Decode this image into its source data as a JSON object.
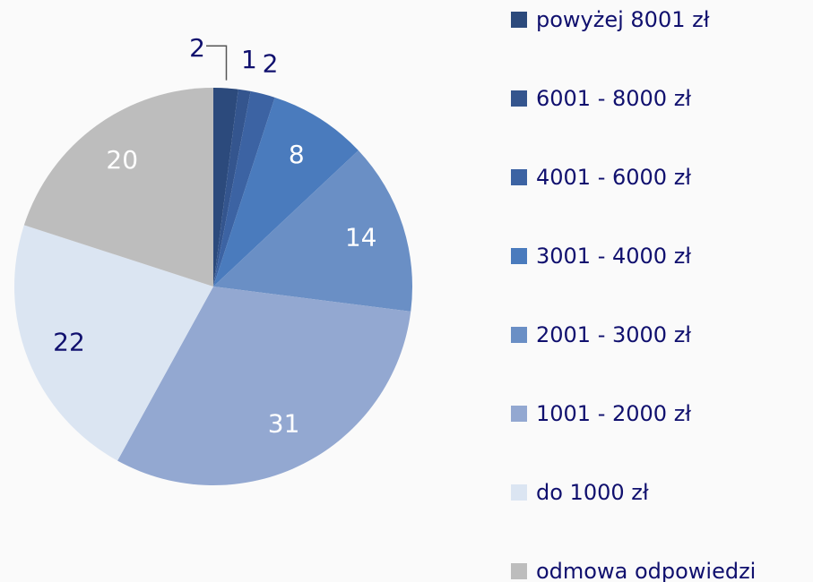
{
  "chart_data": {
    "type": "pie",
    "categories": [
      "powyżej 8001 zł",
      "6001  - 8000 zł",
      "4001 - 6000 zł",
      "3001 - 4000 zł",
      "2001 - 3000 zł",
      "1001 - 2000 zł",
      "do 1000 zł",
      "odmowa odpowiedzi"
    ],
    "values": [
      2,
      1,
      2,
      8,
      14,
      31,
      22,
      20
    ],
    "colors": [
      "#2c4a7c",
      "#34558e",
      "#3c63a3",
      "#4a7bbd",
      "#6a8fc5",
      "#93a8d1",
      "#dbe5f2",
      "#bdbdbd"
    ],
    "legend": "right"
  }
}
